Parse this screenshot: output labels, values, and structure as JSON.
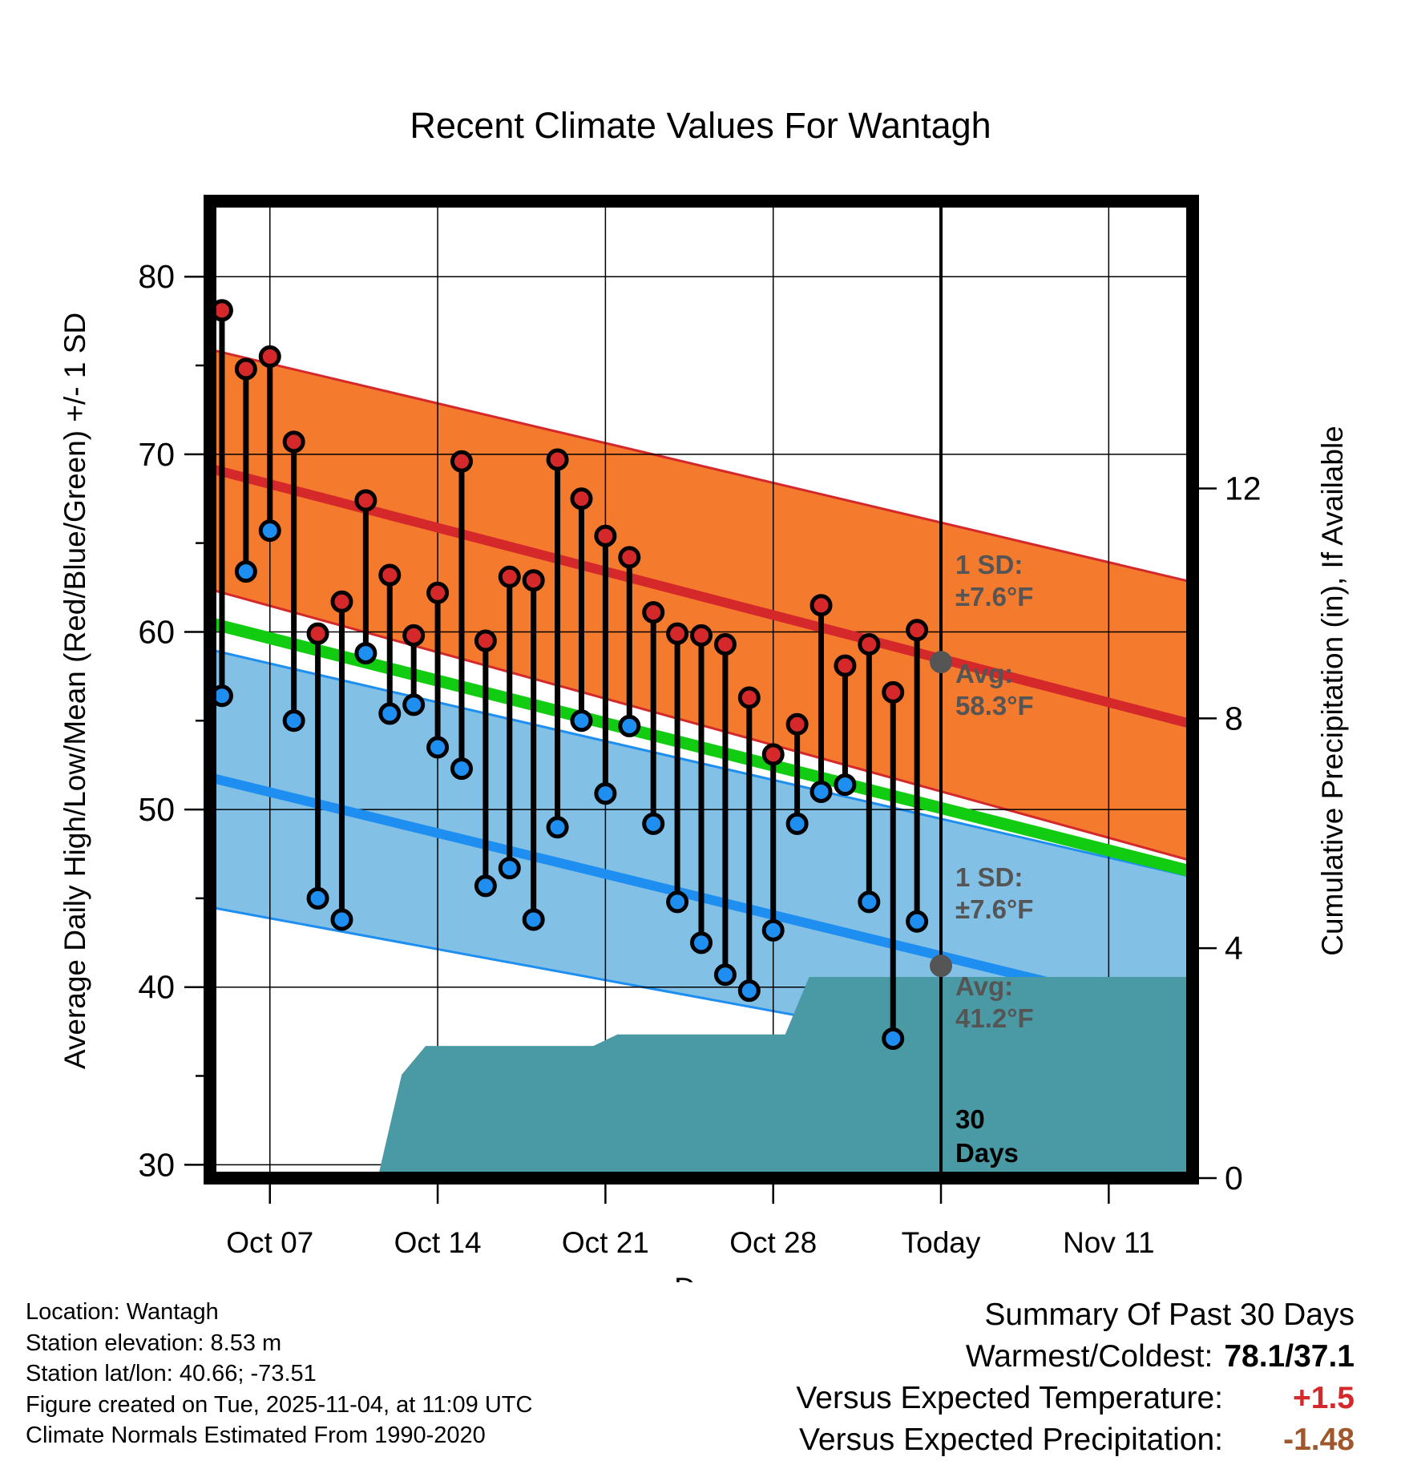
{
  "chart_data": {
    "type": "line",
    "title": "Recent Climate Values For Wantagh",
    "xlabel": "Day",
    "ylabel": "Average Daily High/Low/Mean (Red/Blue/Green) +/- 1 SD",
    "y2label": "Cumulative Precipitation (in), If Available",
    "x_day_range": [
      -0.5,
      40.5
    ],
    "ylim": [
      29.25,
      84.25
    ],
    "y2lim": [
      0,
      17
    ],
    "x_ticks": [
      {
        "day": 2,
        "label": "Oct 07"
      },
      {
        "day": 9,
        "label": "Oct 14"
      },
      {
        "day": 16,
        "label": "Oct 21"
      },
      {
        "day": 23,
        "label": "Oct 28"
      },
      {
        "day": 30,
        "label": "Today"
      },
      {
        "day": 37,
        "label": "Nov 11"
      }
    ],
    "y_ticks": [
      30,
      40,
      50,
      60,
      70,
      80
    ],
    "y_minor_ticks": [
      35,
      45,
      55,
      65,
      75
    ],
    "y2_ticks": [
      0,
      4,
      8,
      12
    ],
    "today_day": 30,
    "normals": {
      "start_day": -0.5,
      "end_day": 40.5,
      "high_avg": [
        69.2,
        54.8
      ],
      "high_upper": [
        75.9,
        62.8
      ],
      "high_lower": [
        62.4,
        47.1
      ],
      "low_avg": [
        51.8,
        38.3
      ],
      "low_upper": [
        59.0,
        46.2
      ],
      "low_lower": [
        44.5,
        34.3
      ],
      "mean_avg": [
        60.5,
        46.5
      ]
    },
    "daily": [
      {
        "day": 0,
        "high": 78.1,
        "low": 56.4
      },
      {
        "day": 1,
        "high": 74.8,
        "low": 63.4
      },
      {
        "day": 2,
        "high": 75.5,
        "low": 65.7
      },
      {
        "day": 3,
        "high": 70.7,
        "low": 55.0
      },
      {
        "day": 4,
        "high": 59.9,
        "low": 45.0
      },
      {
        "day": 5,
        "high": 61.7,
        "low": 43.8
      },
      {
        "day": 6,
        "high": 67.4,
        "low": 58.8
      },
      {
        "day": 7,
        "high": 63.2,
        "low": 55.4
      },
      {
        "day": 8,
        "high": 59.8,
        "low": 55.9
      },
      {
        "day": 9,
        "high": 62.2,
        "low": 53.5
      },
      {
        "day": 10,
        "high": 69.6,
        "low": 52.3
      },
      {
        "day": 11,
        "high": 59.5,
        "low": 45.7
      },
      {
        "day": 12,
        "high": 63.1,
        "low": 46.7
      },
      {
        "day": 13,
        "high": 62.9,
        "low": 43.8
      },
      {
        "day": 14,
        "high": 69.7,
        "low": 49.0
      },
      {
        "day": 15,
        "high": 67.5,
        "low": 55.0
      },
      {
        "day": 16,
        "high": 65.4,
        "low": 50.9
      },
      {
        "day": 17,
        "high": 64.2,
        "low": 54.7
      },
      {
        "day": 18,
        "high": 61.1,
        "low": 49.2
      },
      {
        "day": 19,
        "high": 59.9,
        "low": 44.8
      },
      {
        "day": 20,
        "high": 59.8,
        "low": 42.5
      },
      {
        "day": 21,
        "high": 59.3,
        "low": 40.7
      },
      {
        "day": 22,
        "high": 56.3,
        "low": 39.8
      },
      {
        "day": 23,
        "high": 53.1,
        "low": 43.2
      },
      {
        "day": 24,
        "high": 54.8,
        "low": 49.2
      },
      {
        "day": 25,
        "high": 61.5,
        "low": 51.0
      },
      {
        "day": 26,
        "high": 58.1,
        "low": 51.4
      },
      {
        "day": 27,
        "high": 59.3,
        "low": 44.8
      },
      {
        "day": 28,
        "high": 56.6,
        "low": 37.1
      },
      {
        "day": 29,
        "high": 60.1,
        "low": 43.7
      }
    ],
    "precip_cumulative": [
      {
        "day": -0.5,
        "value": 0
      },
      {
        "day": 6.5,
        "value": 0
      },
      {
        "day": 7.5,
        "value": 1.8
      },
      {
        "day": 8.5,
        "value": 2.3
      },
      {
        "day": 15.5,
        "value": 2.3
      },
      {
        "day": 16.5,
        "value": 2.5
      },
      {
        "day": 22.5,
        "value": 2.5
      },
      {
        "day": 23.5,
        "value": 2.5
      },
      {
        "day": 24.5,
        "value": 3.5
      },
      {
        "day": 40.5,
        "value": 3.5
      }
    ],
    "annotations": {
      "high_sd_label": "1 SD:",
      "high_sd_value": "±7.6°F",
      "high_avg_label": "Avg:",
      "high_avg_value": "58.3°F",
      "high_avg_today": 58.3,
      "low_sd_label": "1 SD:",
      "low_sd_value": "±7.6°F",
      "low_avg_label": "Avg:",
      "low_avg_value": "41.2°F",
      "low_avg_today": 41.2,
      "window_label_1": "30",
      "window_label_2": "Days"
    },
    "colors": {
      "high_band": "#f47a2e",
      "high_line": "#d4282a",
      "low_band": "#82c0e6",
      "low_line": "#1e8ff0",
      "mean_line": "#12cc12",
      "precip_fill": "#4a9aa5",
      "high_dot": "#d4282a",
      "low_dot": "#1e8ff0",
      "avg_dot": "#555555",
      "annotation_text": "#555555"
    }
  },
  "info": {
    "location": "Location: Wantagh",
    "elevation": "Station elevation: 8.53 m",
    "latlon": "Station lat/lon: 40.66; -73.51",
    "created": "Figure created on Tue, 2025-11-04, at 11:09 UTC",
    "normals_source": "Climate Normals Estimated From 1990-2020"
  },
  "summary": {
    "heading": "Summary Of Past 30 Days",
    "extremes_label": "Warmest/Coldest:",
    "extremes_value": "78.1/37.1",
    "temp_label": "Versus Expected Temperature:",
    "temp_value": "+1.5",
    "temp_color": "#d4282a",
    "precip_label": "Versus Expected Precipitation:",
    "precip_value": "-1.48",
    "precip_color": "#a0572c"
  }
}
